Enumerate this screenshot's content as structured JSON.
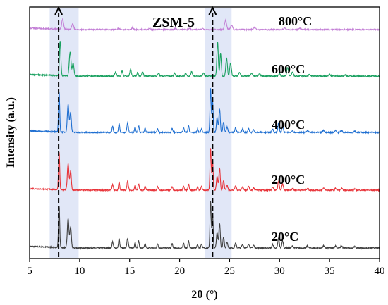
{
  "chart_data": {
    "type": "line",
    "xlabel": "2θ (°)",
    "ylabel": "Intensity (a.u.)",
    "xlim": [
      5,
      40
    ],
    "x_ticks": [
      5,
      10,
      15,
      20,
      25,
      30,
      35,
      40
    ],
    "y_ticks_shown": false,
    "annotation": "ZSM-5",
    "highlight_bands": [
      [
        7.0,
        9.9
      ],
      [
        22.5,
        25.2
      ]
    ],
    "dashed_markers": [
      7.9,
      23.3
    ],
    "series": [
      {
        "name": "20°C",
        "color": "#404040",
        "amp": 1.0,
        "peaks": [
          [
            7.95,
            60,
            0.06
          ],
          [
            8.85,
            42,
            0.08
          ],
          [
            9.1,
            30,
            0.07
          ],
          [
            13.3,
            9,
            0.06
          ],
          [
            13.95,
            13,
            0.06
          ],
          [
            14.8,
            14,
            0.07
          ],
          [
            15.55,
            8,
            0.06
          ],
          [
            15.9,
            10,
            0.06
          ],
          [
            16.55,
            6,
            0.06
          ],
          [
            17.8,
            6,
            0.06
          ],
          [
            19.25,
            6,
            0.06
          ],
          [
            20.4,
            7,
            0.06
          ],
          [
            20.9,
            10,
            0.06
          ],
          [
            21.8,
            5,
            0.06
          ],
          [
            22.2,
            6,
            0.06
          ],
          [
            23.1,
            66,
            0.06
          ],
          [
            23.3,
            48,
            0.06
          ],
          [
            23.75,
            22,
            0.07
          ],
          [
            24.0,
            35,
            0.07
          ],
          [
            24.4,
            15,
            0.07
          ],
          [
            24.75,
            8,
            0.07
          ],
          [
            25.6,
            7,
            0.07
          ],
          [
            26.3,
            5,
            0.08
          ],
          [
            26.9,
            6,
            0.07
          ],
          [
            27.4,
            4,
            0.07
          ],
          [
            29.3,
            5,
            0.07
          ],
          [
            29.9,
            14,
            0.07
          ],
          [
            30.3,
            10,
            0.07
          ],
          [
            31.3,
            3,
            0.07
          ],
          [
            32.8,
            3,
            0.08
          ],
          [
            34.4,
            3,
            0.08
          ],
          [
            35.6,
            3,
            0.08
          ],
          [
            36.2,
            3,
            0.08
          ],
          [
            37.5,
            2,
            0.08
          ]
        ]
      },
      {
        "name": "200°C",
        "color": "#e8343a",
        "amp": 0.9,
        "peaks": [
          [
            7.95,
            60,
            0.06
          ],
          [
            8.85,
            42,
            0.08
          ],
          [
            9.1,
            30,
            0.07
          ],
          [
            13.3,
            9,
            0.06
          ],
          [
            13.95,
            13,
            0.06
          ],
          [
            14.8,
            14,
            0.07
          ],
          [
            15.55,
            8,
            0.06
          ],
          [
            15.9,
            10,
            0.06
          ],
          [
            16.55,
            6,
            0.06
          ],
          [
            17.8,
            6,
            0.06
          ],
          [
            19.25,
            6,
            0.06
          ],
          [
            20.4,
            7,
            0.06
          ],
          [
            20.9,
            10,
            0.06
          ],
          [
            21.8,
            5,
            0.06
          ],
          [
            22.2,
            6,
            0.06
          ],
          [
            23.1,
            66,
            0.06
          ],
          [
            23.3,
            48,
            0.06
          ],
          [
            23.75,
            22,
            0.07
          ],
          [
            24.0,
            35,
            0.07
          ],
          [
            24.4,
            15,
            0.07
          ],
          [
            24.75,
            8,
            0.07
          ],
          [
            25.6,
            7,
            0.07
          ],
          [
            26.3,
            5,
            0.08
          ],
          [
            26.9,
            6,
            0.07
          ],
          [
            27.4,
            4,
            0.07
          ],
          [
            29.3,
            5,
            0.07
          ],
          [
            29.9,
            14,
            0.07
          ],
          [
            30.3,
            10,
            0.07
          ],
          [
            31.3,
            3,
            0.07
          ],
          [
            32.8,
            3,
            0.08
          ],
          [
            34.4,
            3,
            0.08
          ],
          [
            35.6,
            3,
            0.08
          ],
          [
            36.2,
            3,
            0.08
          ],
          [
            37.5,
            2,
            0.08
          ]
        ]
      },
      {
        "name": "400°C",
        "color": "#1f6fd1",
        "amp": 0.95,
        "peaks": [
          [
            7.95,
            60,
            0.06
          ],
          [
            8.85,
            42,
            0.08
          ],
          [
            9.1,
            30,
            0.07
          ],
          [
            13.3,
            9,
            0.06
          ],
          [
            13.95,
            13,
            0.06
          ],
          [
            14.8,
            14,
            0.07
          ],
          [
            15.55,
            8,
            0.06
          ],
          [
            15.9,
            10,
            0.06
          ],
          [
            16.55,
            6,
            0.06
          ],
          [
            17.8,
            6,
            0.06
          ],
          [
            19.25,
            6,
            0.06
          ],
          [
            20.4,
            7,
            0.06
          ],
          [
            20.9,
            10,
            0.06
          ],
          [
            21.8,
            5,
            0.06
          ],
          [
            22.2,
            6,
            0.06
          ],
          [
            23.1,
            66,
            0.06
          ],
          [
            23.3,
            48,
            0.06
          ],
          [
            23.75,
            22,
            0.07
          ],
          [
            24.0,
            35,
            0.07
          ],
          [
            24.4,
            15,
            0.07
          ],
          [
            24.75,
            8,
            0.07
          ],
          [
            25.6,
            7,
            0.07
          ],
          [
            26.3,
            5,
            0.08
          ],
          [
            26.9,
            6,
            0.07
          ],
          [
            27.4,
            4,
            0.07
          ],
          [
            29.3,
            5,
            0.07
          ],
          [
            29.9,
            14,
            0.07
          ],
          [
            30.3,
            10,
            0.07
          ],
          [
            31.3,
            3,
            0.07
          ],
          [
            32.8,
            3,
            0.08
          ],
          [
            34.4,
            3,
            0.08
          ],
          [
            35.6,
            3,
            0.08
          ],
          [
            36.2,
            3,
            0.08
          ],
          [
            37.5,
            2,
            0.08
          ]
        ]
      },
      {
        "name": "600°C",
        "color": "#1aa160",
        "amp": 0.85,
        "peaks": [
          [
            8.05,
            58,
            0.07
          ],
          [
            9.05,
            40,
            0.09
          ],
          [
            9.35,
            22,
            0.08
          ],
          [
            13.6,
            7,
            0.07
          ],
          [
            14.25,
            9,
            0.07
          ],
          [
            15.1,
            12,
            0.07
          ],
          [
            15.8,
            6,
            0.07
          ],
          [
            16.3,
            8,
            0.07
          ],
          [
            17.9,
            5,
            0.07
          ],
          [
            19.5,
            5,
            0.07
          ],
          [
            20.6,
            5,
            0.07
          ],
          [
            21.2,
            8,
            0.07
          ],
          [
            22.4,
            5,
            0.07
          ],
          [
            23.8,
            58,
            0.07
          ],
          [
            24.1,
            38,
            0.07
          ],
          [
            24.7,
            30,
            0.08
          ],
          [
            25.1,
            22,
            0.08
          ],
          [
            26.0,
            6,
            0.08
          ],
          [
            27.2,
            5,
            0.08
          ],
          [
            28.0,
            4,
            0.08
          ],
          [
            30.0,
            4,
            0.08
          ],
          [
            30.8,
            14,
            0.08
          ],
          [
            31.3,
            7,
            0.08
          ],
          [
            33.0,
            3,
            0.08
          ],
          [
            35.0,
            3,
            0.08
          ],
          [
            36.6,
            2,
            0.09
          ]
        ]
      },
      {
        "name": "800°C",
        "color": "#c37fd6",
        "amp": 1.0,
        "peaks": [
          [
            8.3,
            14,
            0.09
          ],
          [
            9.3,
            8,
            0.1
          ],
          [
            13.9,
            2,
            0.08
          ],
          [
            15.3,
            3,
            0.08
          ],
          [
            17.0,
            2,
            0.08
          ],
          [
            19.6,
            2,
            0.08
          ],
          [
            21.0,
            2,
            0.08
          ],
          [
            22.3,
            2,
            0.08
          ],
          [
            24.6,
            13,
            0.1
          ],
          [
            25.2,
            6,
            0.1
          ],
          [
            27.5,
            3,
            0.1
          ],
          [
            30.5,
            2,
            0.1
          ],
          [
            32.0,
            2,
            0.1
          ]
        ]
      }
    ]
  }
}
